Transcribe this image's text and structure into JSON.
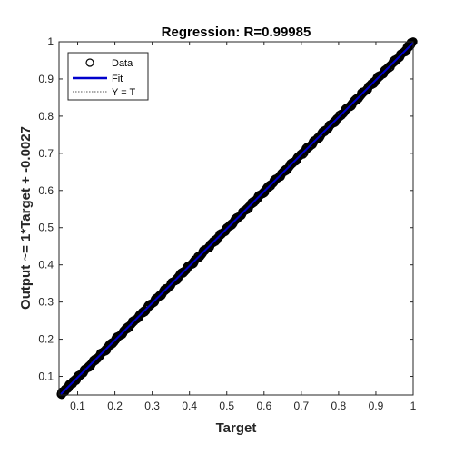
{
  "chart_data": {
    "type": "scatter",
    "title": "Regression: R=0.99985",
    "xlabel": "Target",
    "ylabel": "Output ~= 1*Target + -0.0027",
    "xlim": [
      0.05,
      1.0
    ],
    "ylim": [
      0.05,
      1.0
    ],
    "xticks": [
      "0.1",
      "0.2",
      "0.3",
      "0.4",
      "0.5",
      "0.6",
      "0.7",
      "0.8",
      "0.9",
      "1"
    ],
    "yticks": [
      "0.1",
      "0.2",
      "0.3",
      "0.4",
      "0.5",
      "0.6",
      "0.7",
      "0.8",
      "0.9",
      "1"
    ],
    "grid": false,
    "legend_position": "top-left",
    "legend": [
      "Data",
      "Fit",
      "Y = T"
    ],
    "fit": {
      "slope": 1,
      "intercept": -0.0027
    },
    "series": [
      {
        "name": "Data",
        "x": [
          0.055,
          0.06,
          0.07,
          0.08,
          0.09,
          0.1,
          0.12,
          0.14,
          0.16,
          0.18,
          0.2,
          0.22,
          0.24,
          0.26,
          0.28,
          0.3,
          0.32,
          0.34,
          0.36,
          0.38,
          0.4,
          0.42,
          0.44,
          0.46,
          0.48,
          0.5,
          0.52,
          0.54,
          0.56,
          0.58,
          0.6,
          0.62,
          0.64,
          0.66,
          0.68,
          0.7,
          0.72,
          0.74,
          0.76,
          0.78,
          0.8,
          0.82,
          0.84,
          0.86,
          0.88,
          0.9,
          0.92,
          0.94,
          0.96,
          0.98,
          0.99,
          1.0
        ],
        "y": [
          0.052,
          0.057,
          0.067,
          0.077,
          0.087,
          0.097,
          0.117,
          0.137,
          0.157,
          0.177,
          0.197,
          0.217,
          0.237,
          0.257,
          0.277,
          0.297,
          0.317,
          0.337,
          0.357,
          0.377,
          0.397,
          0.417,
          0.437,
          0.457,
          0.477,
          0.497,
          0.517,
          0.537,
          0.557,
          0.577,
          0.597,
          0.617,
          0.637,
          0.657,
          0.677,
          0.697,
          0.717,
          0.737,
          0.757,
          0.777,
          0.797,
          0.817,
          0.837,
          0.857,
          0.877,
          0.897,
          0.917,
          0.937,
          0.957,
          0.977,
          0.99,
          1.0
        ]
      }
    ]
  },
  "colors": {
    "data_marker": "#000000",
    "fit_line": "#0000cc",
    "identity_line": "#555555"
  }
}
